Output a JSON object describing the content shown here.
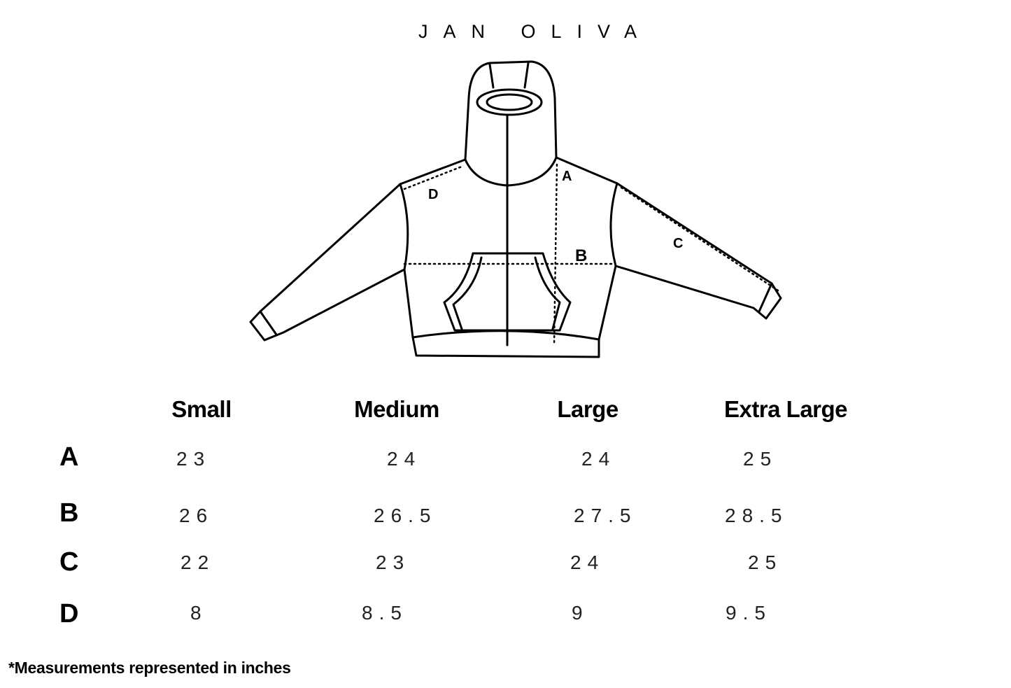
{
  "brand": "JAN OLIVA",
  "diagram_labels": {
    "a": "A",
    "b": "B",
    "c": "C",
    "d": "D"
  },
  "table": {
    "columns": [
      "Small",
      "Medium",
      "Large",
      "Extra Large"
    ],
    "rows": [
      {
        "label": "A",
        "values": [
          "23",
          "24",
          "24",
          "25"
        ]
      },
      {
        "label": "B",
        "values": [
          "26",
          "26.5",
          "27.5",
          "28.5"
        ]
      },
      {
        "label": "C",
        "values": [
          "22",
          "23",
          "24",
          "25"
        ]
      },
      {
        "label": "D",
        "values": [
          "8",
          "8.5",
          "9",
          "9.5"
        ]
      }
    ]
  },
  "note": "*Measurements represented in inches"
}
